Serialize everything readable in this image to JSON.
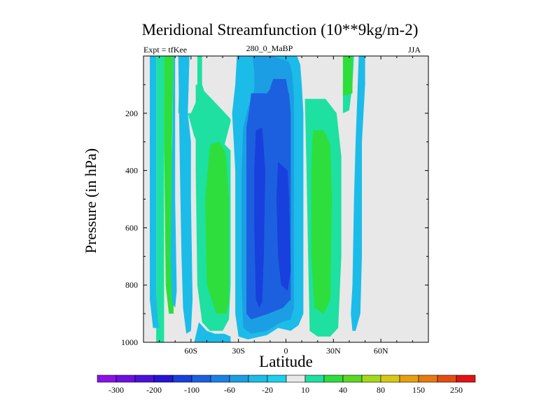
{
  "chart_data": {
    "type": "heatmap",
    "title": "Meridional Streamfunction (10**9kg/m-2)",
    "subtitle_left": "Expt = tfKee",
    "subtitle_center": "280_0_MaBP",
    "subtitle_right": "JJA",
    "xlabel": "Latitude",
    "ylabel": "Pressure (in hPa)",
    "xlim": [
      -90,
      90
    ],
    "ylim": [
      0,
      1000
    ],
    "x_ticks": [
      {
        "value": -60,
        "label": "60S"
      },
      {
        "value": -30,
        "label": "30S"
      },
      {
        "value": 0,
        "label": "0"
      },
      {
        "value": 30,
        "label": "30N"
      },
      {
        "value": 60,
        "label": "60N"
      }
    ],
    "y_ticks": [
      {
        "value": 200,
        "label": "200"
      },
      {
        "value": 400,
        "label": "400"
      },
      {
        "value": 600,
        "label": "600"
      },
      {
        "value": 800,
        "label": "800"
      },
      {
        "value": 1000,
        "label": "1000"
      }
    ],
    "background_color": "#e8e8e8",
    "colorbar": {
      "colors": [
        "#8a12e6",
        "#6c10e0",
        "#4b10dc",
        "#2414d6",
        "#1840dc",
        "#1c60e0",
        "#1c80e4",
        "#1c9ee4",
        "#1cbce8",
        "#1cd0ec",
        "#e8e8e8",
        "#1ee0a0",
        "#2ede3c",
        "#5ad822",
        "#a6d81a",
        "#d8c812",
        "#e8a010",
        "#e67a10",
        "#e24e12",
        "#e01414"
      ],
      "labels": [
        "-300",
        "-200",
        "-100",
        "-60",
        "-20",
        "10",
        "40",
        "80",
        "150",
        "250"
      ]
    },
    "regions": [
      {
        "level": 10,
        "points": [
          [
            -82,
            0
          ],
          [
            -77,
            0
          ],
          [
            -77,
            1000
          ],
          [
            -82,
            1000
          ]
        ]
      },
      {
        "level": -20,
        "points": [
          [
            -86,
            0
          ],
          [
            -82,
            0
          ],
          [
            -82,
            830
          ],
          [
            -81,
            920
          ],
          [
            -80,
            950
          ],
          [
            -84,
            950
          ],
          [
            -85,
            900
          ],
          [
            -86,
            850
          ]
        ]
      },
      {
        "level": 40,
        "points": [
          [
            -77,
            0
          ],
          [
            -71,
            0
          ],
          [
            -72,
            300
          ],
          [
            -71,
            780
          ],
          [
            -71,
            900
          ],
          [
            -74,
            900
          ],
          [
            -76,
            800
          ],
          [
            -77,
            300
          ]
        ]
      },
      {
        "level": -20,
        "points": [
          [
            -71,
            0
          ],
          [
            -70,
            0
          ],
          [
            -70,
            500
          ],
          [
            -69,
            820
          ],
          [
            -70,
            880
          ],
          [
            -72,
            860
          ],
          [
            -73,
            700
          ]
        ]
      },
      {
        "level": 10,
        "points": [
          [
            -67,
            0
          ],
          [
            -61,
            0
          ],
          [
            -62,
            200
          ],
          [
            -58,
            280
          ],
          [
            -45,
            440
          ],
          [
            -35,
            230
          ],
          [
            -35,
            220
          ],
          [
            -40,
            190
          ],
          [
            -53,
            115
          ],
          [
            -53,
            0
          ],
          [
            -56,
            0
          ],
          [
            -56,
            150
          ],
          [
            -60,
            200
          ],
          [
            -68,
            200
          ]
        ]
      },
      {
        "level": -20,
        "points": [
          [
            -68,
            0
          ],
          [
            -61,
            0
          ],
          [
            -62,
            200
          ],
          [
            -60,
            300
          ],
          [
            -60,
            500
          ],
          [
            -59,
            850
          ],
          [
            -60,
            960
          ],
          [
            -63,
            970
          ],
          [
            -65,
            880
          ],
          [
            -66,
            700
          ],
          [
            -67,
            400
          ]
        ]
      },
      {
        "level": 10,
        "points": [
          [
            -57,
            100
          ],
          [
            -53,
            100
          ],
          [
            -47,
            200
          ],
          [
            -42,
            290
          ],
          [
            -35,
            330
          ],
          [
            -35,
            800
          ],
          [
            -36,
            920
          ],
          [
            -40,
            960
          ],
          [
            -48,
            960
          ],
          [
            -53,
            930
          ],
          [
            -56,
            800
          ],
          [
            -57,
            400
          ]
        ]
      },
      {
        "level": 40,
        "points": [
          [
            -48,
            310
          ],
          [
            -42,
            300
          ],
          [
            -38,
            340
          ],
          [
            -36,
            500
          ],
          [
            -36,
            860
          ],
          [
            -38,
            900
          ],
          [
            -44,
            900
          ],
          [
            -50,
            800
          ],
          [
            -51,
            500
          ]
        ]
      },
      {
        "level": -20,
        "points": [
          [
            -55,
            930
          ],
          [
            -50,
            960
          ],
          [
            -45,
            970
          ],
          [
            -39,
            970
          ],
          [
            -35,
            980
          ],
          [
            -35,
            1000
          ],
          [
            -58,
            1000
          ]
        ]
      },
      {
        "level": -20,
        "points": [
          [
            -31,
            0
          ],
          [
            -27,
            0
          ],
          [
            -23,
            0
          ],
          [
            -16,
            0
          ],
          [
            -6,
            0
          ],
          [
            0,
            0
          ],
          [
            4,
            0
          ],
          [
            7,
            0
          ],
          [
            9,
            30
          ],
          [
            10,
            100
          ],
          [
            11,
            200
          ],
          [
            11,
            900
          ],
          [
            8,
            940
          ],
          [
            3,
            960
          ],
          [
            -5,
            950
          ],
          [
            -12,
            975
          ],
          [
            -24,
            990
          ],
          [
            -30,
            980
          ],
          [
            -32,
            900
          ],
          [
            -32,
            400
          ],
          [
            -33,
            300
          ],
          [
            -34,
            200
          ],
          [
            -32,
            100
          ]
        ]
      },
      {
        "level": -20,
        "points": [
          [
            -26,
            0
          ],
          [
            -21,
            0
          ],
          [
            -19,
            40
          ],
          [
            -22,
            100
          ],
          [
            -25,
            90
          ]
        ]
      },
      {
        "level": -60,
        "points": [
          [
            -21,
            0
          ],
          [
            -8,
            0
          ],
          [
            2,
            20
          ],
          [
            4,
            60
          ],
          [
            5,
            140
          ],
          [
            5,
            880
          ],
          [
            3,
            920
          ],
          [
            -3,
            930
          ],
          [
            -12,
            960
          ],
          [
            -22,
            970
          ],
          [
            -27,
            950
          ],
          [
            -28,
            800
          ],
          [
            -28,
            400
          ],
          [
            -27,
            250
          ],
          [
            -24,
            180
          ],
          [
            -20,
            120
          ],
          [
            -20,
            60
          ]
        ]
      },
      {
        "level": -100,
        "points": [
          [
            -22,
            130
          ],
          [
            -12,
            130
          ],
          [
            -8,
            100
          ],
          [
            2,
            130
          ],
          [
            3,
            200
          ],
          [
            3,
            850
          ],
          [
            -2,
            880
          ],
          [
            -11,
            900
          ],
          [
            -22,
            920
          ],
          [
            -25,
            900
          ],
          [
            -25,
            500
          ],
          [
            -25,
            250
          ],
          [
            -23,
            180
          ]
        ]
      },
      {
        "level": -100,
        "points": [
          [
            -8,
            80
          ],
          [
            0,
            80
          ],
          [
            2,
            140
          ],
          [
            -6,
            140
          ],
          [
            -10,
            110
          ]
        ]
      },
      {
        "level": -100,
        "points": [
          [
            -21,
            200
          ],
          [
            -16,
            180
          ],
          [
            -11,
            200
          ],
          [
            -12,
            300
          ],
          [
            -12,
            600
          ],
          [
            -11,
            880
          ],
          [
            -16,
            900
          ],
          [
            -20,
            880
          ],
          [
            -22,
            600
          ],
          [
            -22,
            300
          ]
        ]
      },
      {
        "level": -200,
        "points": [
          [
            -19,
            260
          ],
          [
            -15,
            250
          ],
          [
            -13,
            400
          ],
          [
            -14,
            700
          ],
          [
            -15,
            860
          ],
          [
            -17,
            880
          ],
          [
            -19,
            850
          ],
          [
            -20,
            600
          ],
          [
            -20,
            400
          ]
        ]
      },
      {
        "level": -200,
        "points": [
          [
            -5,
            370
          ],
          [
            1,
            400
          ],
          [
            2,
            500
          ],
          [
            3,
            750
          ],
          [
            1,
            820
          ],
          [
            -3,
            800
          ],
          [
            -5,
            700
          ],
          [
            -6,
            500
          ]
        ]
      },
      {
        "level": 10,
        "points": [
          [
            12,
            150
          ],
          [
            25,
            150
          ],
          [
            32,
            200
          ],
          [
            35,
            350
          ],
          [
            35,
            700
          ],
          [
            33,
            950
          ],
          [
            28,
            980
          ],
          [
            20,
            980
          ],
          [
            15,
            960
          ],
          [
            14,
            700
          ],
          [
            13,
            400
          ]
        ]
      },
      {
        "level": 40,
        "points": [
          [
            17,
            260
          ],
          [
            24,
            260
          ],
          [
            28,
            310
          ],
          [
            29,
            500
          ],
          [
            28,
            850
          ],
          [
            24,
            900
          ],
          [
            18,
            880
          ],
          [
            16,
            700
          ],
          [
            16,
            400
          ]
        ]
      },
      {
        "level": 10,
        "points": [
          [
            37,
            0
          ],
          [
            43,
            0
          ],
          [
            42,
            100
          ],
          [
            40,
            190
          ],
          [
            36,
            200
          ],
          [
            36,
            100
          ]
        ]
      },
      {
        "level": 40,
        "points": [
          [
            36,
            0
          ],
          [
            42,
            0
          ],
          [
            42,
            130
          ],
          [
            36,
            140
          ]
        ]
      },
      {
        "level": -20,
        "points": [
          [
            46,
            0
          ],
          [
            50,
            0
          ],
          [
            50,
            100
          ],
          [
            49,
            200
          ],
          [
            48,
            300
          ],
          [
            48,
            700
          ],
          [
            47,
            900
          ],
          [
            44,
            960
          ],
          [
            42,
            960
          ],
          [
            41,
            900
          ],
          [
            42,
            800
          ],
          [
            43,
            500
          ],
          [
            44,
            300
          ],
          [
            45,
            150
          ]
        ]
      }
    ]
  }
}
